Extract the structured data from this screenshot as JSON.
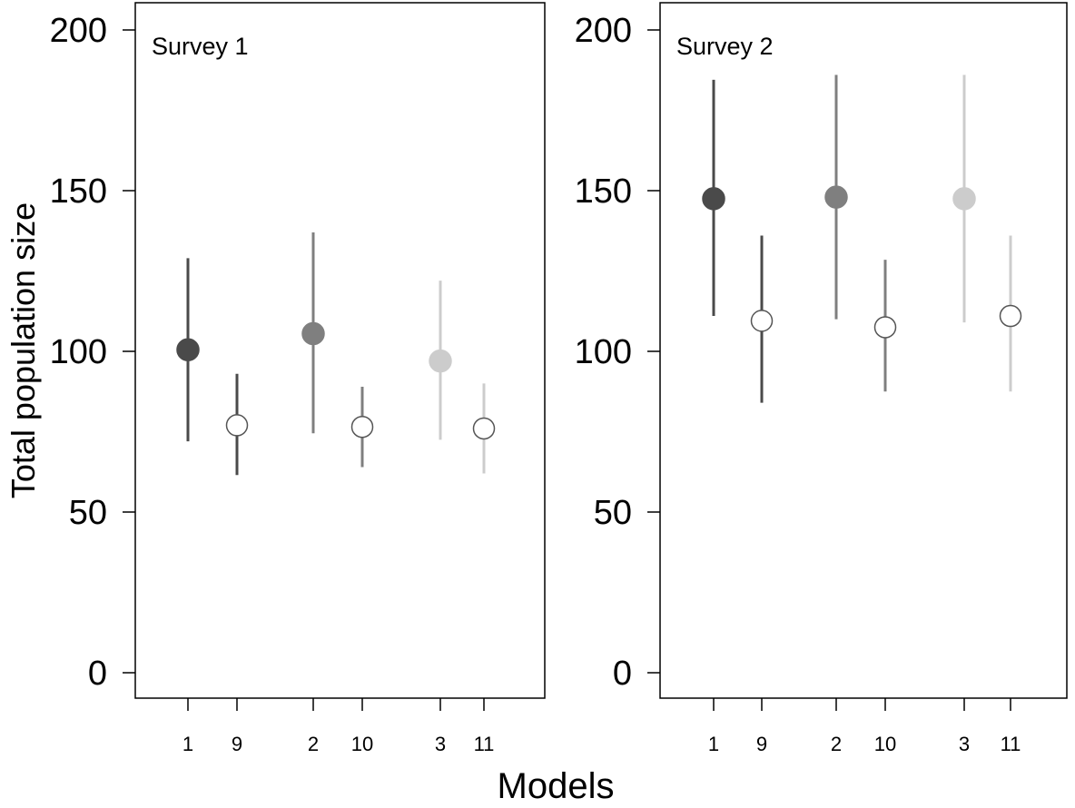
{
  "figure": {
    "xlabel": "Models",
    "ylabel": "Total population size"
  },
  "chart_data": [
    {
      "type": "scatter",
      "title": "Survey 1",
      "xlabel": "Models",
      "ylabel": "Total population size",
      "ylim": [
        0,
        200
      ],
      "yticks": [
        0,
        50,
        100,
        150,
        200
      ],
      "categories": [
        "1",
        "9",
        "2",
        "10",
        "3",
        "11"
      ],
      "points": [
        {
          "model": "1",
          "estimate": 100.5,
          "lower": 72,
          "upper": 129,
          "color": "#4a4a4a",
          "filled": true
        },
        {
          "model": "9",
          "estimate": 77,
          "lower": 61.5,
          "upper": 93,
          "color": "#4a4a4a",
          "filled": false
        },
        {
          "model": "2",
          "estimate": 105.5,
          "lower": 74.5,
          "upper": 137,
          "color": "#7f7f7f",
          "filled": true
        },
        {
          "model": "10",
          "estimate": 76.5,
          "lower": 64,
          "upper": 89,
          "color": "#7f7f7f",
          "filled": false
        },
        {
          "model": "3",
          "estimate": 97,
          "lower": 72.5,
          "upper": 122,
          "color": "#cccccc",
          "filled": true
        },
        {
          "model": "11",
          "estimate": 76,
          "lower": 62,
          "upper": 90,
          "color": "#cccccc",
          "filled": false
        }
      ]
    },
    {
      "type": "scatter",
      "title": "Survey 2",
      "xlabel": "Models",
      "ylabel": "Total population size",
      "ylim": [
        0,
        200
      ],
      "yticks": [
        0,
        50,
        100,
        150,
        200
      ],
      "categories": [
        "1",
        "9",
        "2",
        "10",
        "3",
        "11"
      ],
      "points": [
        {
          "model": "1",
          "estimate": 147.5,
          "lower": 111,
          "upper": 184.5,
          "color": "#4a4a4a",
          "filled": true
        },
        {
          "model": "9",
          "estimate": 109.5,
          "lower": 84,
          "upper": 136,
          "color": "#4a4a4a",
          "filled": false
        },
        {
          "model": "2",
          "estimate": 148,
          "lower": 110,
          "upper": 186,
          "color": "#7f7f7f",
          "filled": true
        },
        {
          "model": "10",
          "estimate": 107.5,
          "lower": 87.5,
          "upper": 128.5,
          "color": "#7f7f7f",
          "filled": false
        },
        {
          "model": "3",
          "estimate": 147.5,
          "lower": 109,
          "upper": 186,
          "color": "#cccccc",
          "filled": true
        },
        {
          "model": "11",
          "estimate": 111,
          "lower": 87.5,
          "upper": 136,
          "color": "#cccccc",
          "filled": false
        }
      ]
    }
  ]
}
